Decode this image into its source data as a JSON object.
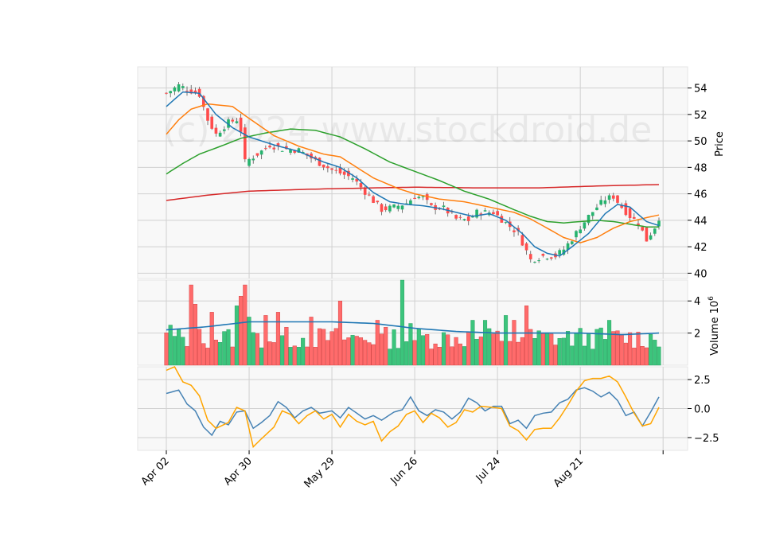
{
  "chart_data": {
    "type": "candlestick",
    "watermark": "(c) 2024 www.stockdroid.de",
    "x_tick_labels": [
      "Apr 02",
      "Apr 30",
      "May 29",
      "Jun 26",
      "Jul 24",
      "Aug 21"
    ],
    "x_tick_index": [
      0,
      20,
      40,
      60,
      80,
      100
    ],
    "n_bars": 120,
    "colors": {
      "up": "#26b36e",
      "down": "#ff4c4c",
      "sma_short": "#1f77b4",
      "sma_mid": "#ff7f0e",
      "sma_long": "#2ca02c",
      "sma_200": "#d62728",
      "volume_avg": "#1f77b4",
      "osc_a": "#4682b4",
      "osc_b": "#ffa500"
    },
    "price_panel": {
      "ylabel": "Price",
      "ylim": [
        39.6,
        55.6
      ],
      "yticks": [
        40,
        42,
        44,
        46,
        48,
        50,
        52,
        54
      ],
      "close_anchors": [
        [
          0,
          53.6
        ],
        [
          3,
          54.2
        ],
        [
          8,
          53.5
        ],
        [
          10,
          51.6
        ],
        [
          12,
          50.5
        ],
        [
          15,
          51.4
        ],
        [
          17,
          51.6
        ],
        [
          18,
          50.8
        ],
        [
          19,
          48.4
        ],
        [
          22,
          49.0
        ],
        [
          25,
          49.7
        ],
        [
          28,
          49.4
        ],
        [
          32,
          49.3
        ],
        [
          36,
          48.5
        ],
        [
          40,
          47.8
        ],
        [
          45,
          47.2
        ],
        [
          49,
          45.8
        ],
        [
          52,
          44.8
        ],
        [
          55,
          45.0
        ],
        [
          58,
          45.3
        ],
        [
          60,
          45.8
        ],
        [
          62,
          45.7
        ],
        [
          64,
          45.0
        ],
        [
          67,
          44.9
        ],
        [
          70,
          44.1
        ],
        [
          73,
          44.0
        ],
        [
          75,
          44.6
        ],
        [
          79,
          44.6
        ],
        [
          82,
          43.8
        ],
        [
          85,
          43.0
        ],
        [
          88,
          41.0
        ],
        [
          91,
          41.3
        ],
        [
          94,
          41.3
        ],
        [
          96,
          41.8
        ],
        [
          98,
          42.6
        ],
        [
          100,
          43.5
        ],
        [
          102,
          44.3
        ],
        [
          104,
          45.0
        ],
        [
          106,
          45.6
        ],
        [
          108,
          45.8
        ],
        [
          110,
          45.0
        ],
        [
          112,
          44.3
        ],
        [
          114,
          43.8
        ],
        [
          116,
          42.5
        ],
        [
          118,
          43.5
        ],
        [
          119,
          44.2
        ]
      ],
      "sma_short": [
        [
          0,
          52.6
        ],
        [
          4,
          53.7
        ],
        [
          8,
          53.6
        ],
        [
          12,
          52.0
        ],
        [
          16,
          51.0
        ],
        [
          20,
          50.3
        ],
        [
          26,
          49.7
        ],
        [
          32,
          49.2
        ],
        [
          38,
          48.4
        ],
        [
          42,
          48.0
        ],
        [
          46,
          47.2
        ],
        [
          50,
          46.1
        ],
        [
          54,
          45.4
        ],
        [
          58,
          45.2
        ],
        [
          62,
          45.1
        ],
        [
          66,
          44.9
        ],
        [
          70,
          44.6
        ],
        [
          74,
          44.3
        ],
        [
          78,
          44.5
        ],
        [
          82,
          44.0
        ],
        [
          86,
          43.0
        ],
        [
          89,
          42.0
        ],
        [
          92,
          41.5
        ],
        [
          95,
          41.3
        ],
        [
          98,
          42.0
        ],
        [
          102,
          43.0
        ],
        [
          106,
          44.5
        ],
        [
          109,
          45.2
        ],
        [
          112,
          45.0
        ],
        [
          116,
          43.9
        ],
        [
          119,
          43.6
        ]
      ],
      "sma_mid": [
        [
          0,
          50.5
        ],
        [
          3,
          51.6
        ],
        [
          6,
          52.4
        ],
        [
          10,
          52.8
        ],
        [
          16,
          52.6
        ],
        [
          20,
          51.7
        ],
        [
          26,
          50.4
        ],
        [
          32,
          49.6
        ],
        [
          38,
          49.0
        ],
        [
          42,
          48.8
        ],
        [
          46,
          48.0
        ],
        [
          50,
          47.2
        ],
        [
          56,
          46.4
        ],
        [
          60,
          46.0
        ],
        [
          66,
          45.6
        ],
        [
          72,
          45.4
        ],
        [
          78,
          45.0
        ],
        [
          84,
          44.6
        ],
        [
          88,
          44.1
        ],
        [
          92,
          43.4
        ],
        [
          96,
          42.7
        ],
        [
          100,
          42.3
        ],
        [
          104,
          42.7
        ],
        [
          108,
          43.4
        ],
        [
          112,
          43.9
        ],
        [
          116,
          44.2
        ],
        [
          119,
          44.4
        ]
      ],
      "sma_long": [
        [
          0,
          47.5
        ],
        [
          4,
          48.3
        ],
        [
          8,
          49.0
        ],
        [
          14,
          49.7
        ],
        [
          18,
          50.2
        ],
        [
          24,
          50.6
        ],
        [
          30,
          50.9
        ],
        [
          36,
          50.8
        ],
        [
          42,
          50.3
        ],
        [
          48,
          49.4
        ],
        [
          54,
          48.4
        ],
        [
          60,
          47.7
        ],
        [
          66,
          47.0
        ],
        [
          72,
          46.2
        ],
        [
          78,
          45.6
        ],
        [
          84,
          44.8
        ],
        [
          88,
          44.3
        ],
        [
          92,
          43.9
        ],
        [
          96,
          43.8
        ],
        [
          100,
          43.9
        ],
        [
          104,
          44.0
        ],
        [
          108,
          43.9
        ],
        [
          112,
          43.7
        ],
        [
          116,
          43.5
        ],
        [
          119,
          43.5
        ]
      ],
      "sma_200": [
        [
          0,
          45.5
        ],
        [
          10,
          45.9
        ],
        [
          20,
          46.2
        ],
        [
          35,
          46.35
        ],
        [
          50,
          46.45
        ],
        [
          60,
          46.5
        ],
        [
          75,
          46.45
        ],
        [
          90,
          46.45
        ],
        [
          105,
          46.6
        ],
        [
          119,
          46.7
        ]
      ]
    },
    "volume_panel": {
      "ylabel": "Volume  10",
      "ylabel_exponent": "6",
      "ylim": [
        0,
        5.3
      ],
      "yticks": [
        2,
        4
      ],
      "avg_line": [
        [
          0,
          2.2
        ],
        [
          10,
          2.4
        ],
        [
          20,
          2.7
        ],
        [
          30,
          2.7
        ],
        [
          40,
          2.7
        ],
        [
          50,
          2.6
        ],
        [
          60,
          2.3
        ],
        [
          70,
          2.1
        ],
        [
          80,
          2.0
        ],
        [
          90,
          2.0
        ],
        [
          100,
          2.0
        ],
        [
          110,
          1.9
        ],
        [
          119,
          2.0
        ]
      ]
    },
    "oscillator_panel": {
      "ylim": [
        -3.6,
        3.6
      ],
      "yticks": [
        -2.5,
        0.0,
        2.5
      ],
      "ytick_labels": [
        "−2.5",
        "0.0",
        "2.5"
      ],
      "line_a": [
        [
          0,
          1.3
        ],
        [
          3,
          1.6
        ],
        [
          5,
          0.4
        ],
        [
          7,
          -0.2
        ],
        [
          9,
          -1.6
        ],
        [
          11,
          -2.3
        ],
        [
          13,
          -1.1
        ],
        [
          15,
          -1.4
        ],
        [
          17,
          -0.3
        ],
        [
          19,
          -0.2
        ],
        [
          21,
          -1.7
        ],
        [
          23,
          -1.2
        ],
        [
          25,
          -0.6
        ],
        [
          27,
          0.6
        ],
        [
          29,
          0.1
        ],
        [
          31,
          -0.8
        ],
        [
          33,
          -0.2
        ],
        [
          35,
          0.1
        ],
        [
          37,
          -0.4
        ],
        [
          40,
          -0.2
        ],
        [
          42,
          -0.8
        ],
        [
          44,
          0.1
        ],
        [
          46,
          -0.4
        ],
        [
          48,
          -0.9
        ],
        [
          50,
          -0.6
        ],
        [
          52,
          -1.0
        ],
        [
          55,
          -0.3
        ],
        [
          57,
          -0.1
        ],
        [
          59,
          1.0
        ],
        [
          61,
          -0.2
        ],
        [
          63,
          -0.6
        ],
        [
          65,
          -0.1
        ],
        [
          67,
          -0.3
        ],
        [
          69,
          -0.9
        ],
        [
          71,
          -0.3
        ],
        [
          73,
          0.9
        ],
        [
          75,
          0.5
        ],
        [
          77,
          -0.2
        ],
        [
          79,
          0.2
        ],
        [
          81,
          0.2
        ],
        [
          83,
          -1.3
        ],
        [
          85,
          -1.0
        ],
        [
          87,
          -1.7
        ],
        [
          89,
          -0.6
        ],
        [
          91,
          -0.4
        ],
        [
          93,
          -0.3
        ],
        [
          95,
          0.5
        ],
        [
          97,
          0.8
        ],
        [
          99,
          1.6
        ],
        [
          101,
          1.8
        ],
        [
          103,
          1.5
        ],
        [
          105,
          1.0
        ],
        [
          107,
          1.4
        ],
        [
          109,
          0.7
        ],
        [
          111,
          -0.6
        ],
        [
          113,
          -0.3
        ],
        [
          115,
          -1.5
        ],
        [
          117,
          -0.3
        ],
        [
          119,
          1.0
        ]
      ],
      "line_b": [
        [
          0,
          3.3
        ],
        [
          2,
          3.6
        ],
        [
          4,
          2.3
        ],
        [
          6,
          2.0
        ],
        [
          8,
          1.1
        ],
        [
          10,
          -1.0
        ],
        [
          12,
          -1.7
        ],
        [
          15,
          -1.2
        ],
        [
          17,
          0.1
        ],
        [
          19,
          -0.2
        ],
        [
          21,
          -3.3
        ],
        [
          23,
          -2.6
        ],
        [
          26,
          -1.6
        ],
        [
          28,
          -0.2
        ],
        [
          30,
          -0.5
        ],
        [
          32,
          -1.3
        ],
        [
          34,
          -0.6
        ],
        [
          36,
          -0.2
        ],
        [
          38,
          -0.9
        ],
        [
          40,
          -0.5
        ],
        [
          42,
          -1.6
        ],
        [
          44,
          -0.5
        ],
        [
          46,
          -1.1
        ],
        [
          48,
          -1.4
        ],
        [
          50,
          -1.1
        ],
        [
          52,
          -2.8
        ],
        [
          54,
          -2.0
        ],
        [
          56,
          -1.5
        ],
        [
          58,
          -0.5
        ],
        [
          60,
          -0.2
        ],
        [
          62,
          -1.2
        ],
        [
          64,
          -0.4
        ],
        [
          66,
          -0.8
        ],
        [
          68,
          -1.6
        ],
        [
          70,
          -1.2
        ],
        [
          72,
          -0.1
        ],
        [
          74,
          -0.3
        ],
        [
          76,
          0.2
        ],
        [
          79,
          0.1
        ],
        [
          81,
          0.0
        ],
        [
          83,
          -1.5
        ],
        [
          85,
          -1.9
        ],
        [
          87,
          -2.7
        ],
        [
          89,
          -1.8
        ],
        [
          91,
          -1.7
        ],
        [
          93,
          -1.7
        ],
        [
          95,
          -0.8
        ],
        [
          97,
          0.3
        ],
        [
          99,
          1.5
        ],
        [
          101,
          2.4
        ],
        [
          103,
          2.6
        ],
        [
          105,
          2.6
        ],
        [
          107,
          2.8
        ],
        [
          109,
          2.3
        ],
        [
          111,
          1.0
        ],
        [
          113,
          -0.4
        ],
        [
          115,
          -1.5
        ],
        [
          117,
          -1.3
        ],
        [
          119,
          0.1
        ]
      ]
    }
  }
}
